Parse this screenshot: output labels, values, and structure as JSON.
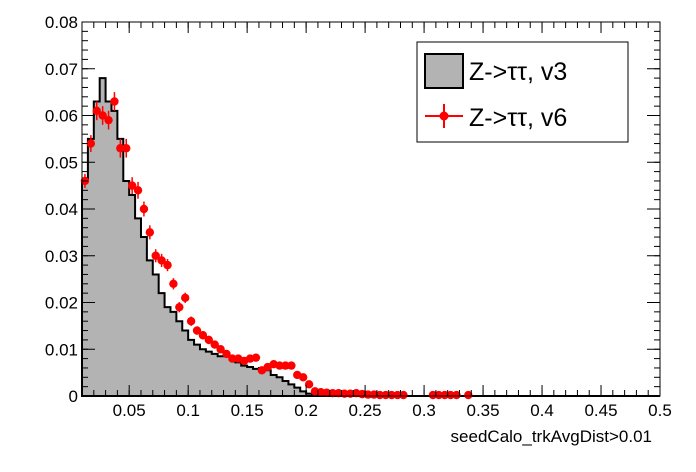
{
  "chart_data": {
    "type": "histogram",
    "xlabel": "seedCalo_trkAvgDist>0.01",
    "ylabel": "",
    "xlim": [
      0.01,
      0.5
    ],
    "ylim": [
      0,
      0.08
    ],
    "x_ticks": [
      "0.05",
      "0.1",
      "0.15",
      "0.2",
      "0.25",
      "0.3",
      "0.35",
      "0.4",
      "0.45",
      "0.5"
    ],
    "y_ticks": [
      "0",
      "0.01",
      "0.02",
      "0.03",
      "0.04",
      "0.05",
      "0.06",
      "0.07",
      "0.08"
    ],
    "grid": false,
    "legend_position": "top-right",
    "series": [
      {
        "name": "Z->ττ, v3",
        "style": "filled-histogram",
        "color": "#b3b3b3",
        "line_color": "#000000",
        "bin_edges": [
          0.01,
          0.015,
          0.02,
          0.025,
          0.03,
          0.035,
          0.04,
          0.045,
          0.05,
          0.055,
          0.06,
          0.065,
          0.07,
          0.075,
          0.08,
          0.085,
          0.09,
          0.095,
          0.1,
          0.105,
          0.11,
          0.115,
          0.12,
          0.125,
          0.13,
          0.135,
          0.14,
          0.145,
          0.15,
          0.155,
          0.16,
          0.165,
          0.17,
          0.175,
          0.18,
          0.185,
          0.19,
          0.195,
          0.2,
          0.205,
          0.21
        ],
        "values": [
          0.046,
          0.055,
          0.063,
          0.068,
          0.063,
          0.061,
          0.055,
          0.046,
          0.043,
          0.038,
          0.034,
          0.029,
          0.026,
          0.022,
          0.019,
          0.018,
          0.016,
          0.014,
          0.012,
          0.011,
          0.01,
          0.0095,
          0.009,
          0.0085,
          0.0088,
          0.0078,
          0.0072,
          0.0065,
          0.0062,
          0.0058,
          0.006,
          0.0055,
          0.0045,
          0.004,
          0.0032,
          0.0025,
          0.0018,
          0.001,
          0.0005,
          0.0003
        ]
      },
      {
        "name": "Z->ττ, v6",
        "style": "points-with-errors",
        "color": "#ff0000",
        "x": [
          0.0125,
          0.0175,
          0.0225,
          0.0275,
          0.0325,
          0.0375,
          0.0425,
          0.0475,
          0.0525,
          0.0575,
          0.0625,
          0.0675,
          0.0725,
          0.0775,
          0.0825,
          0.0875,
          0.0925,
          0.0975,
          0.1025,
          0.1075,
          0.1125,
          0.1175,
          0.1225,
          0.1275,
          0.1325,
          0.1375,
          0.1425,
          0.1475,
          0.1525,
          0.1575,
          0.1625,
          0.1675,
          0.1725,
          0.1775,
          0.1825,
          0.1875,
          0.1925,
          0.1975,
          0.2025,
          0.2075,
          0.2125,
          0.2175,
          0.2225,
          0.2275,
          0.2325,
          0.2375,
          0.2425,
          0.2475,
          0.2525,
          0.2575,
          0.2625,
          0.2675,
          0.2725,
          0.2775,
          0.2825,
          0.3075,
          0.3125,
          0.3175,
          0.3225,
          0.3275,
          0.3375
        ],
        "y": [
          0.046,
          0.054,
          0.061,
          0.06,
          0.059,
          0.063,
          0.053,
          0.053,
          0.045,
          0.044,
          0.04,
          0.035,
          0.03,
          0.029,
          0.028,
          0.024,
          0.019,
          0.021,
          0.016,
          0.014,
          0.013,
          0.012,
          0.011,
          0.01,
          0.009,
          0.008,
          0.008,
          0.0075,
          0.008,
          0.0082,
          0.0055,
          0.0062,
          0.0068,
          0.0065,
          0.0065,
          0.0065,
          0.0045,
          0.004,
          0.0025,
          0.001,
          0.0008,
          0.0007,
          0.0006,
          0.0006,
          0.0005,
          0.0005,
          0.0006,
          0.0004,
          0.0003,
          0.0003,
          0.0002,
          0.0002,
          0.0002,
          0.0002,
          0.0002,
          0.0002,
          0.0002,
          0.0002,
          0.0002,
          0.0002,
          0.0002
        ],
        "err": [
          0.0015,
          0.0018,
          0.002,
          0.002,
          0.002,
          0.002,
          0.002,
          0.002,
          0.0018,
          0.0018,
          0.0016,
          0.0015,
          0.0014,
          0.0014,
          0.0013,
          0.0012,
          0.0011,
          0.0011,
          0.001,
          0.0009,
          0.0009,
          0.0009,
          0.0008,
          0.0008,
          0.0007,
          0.0007,
          0.0007,
          0.0007,
          0.0007,
          0.0007,
          0.0006,
          0.0006,
          0.0006,
          0.0006,
          0.0006,
          0.0006,
          0.0005,
          0.0005,
          0.0004,
          0.0003,
          0.0003,
          0.0002,
          0.0002,
          0.0002,
          0.0002,
          0.0002,
          0.0002,
          0.0002,
          0.0002,
          0.0002,
          0.0001,
          0.0001,
          0.0001,
          0.0001,
          0.0001,
          0.0001,
          0.0001,
          0.0001,
          0.0001,
          0.0001,
          0.0001
        ]
      }
    ]
  }
}
